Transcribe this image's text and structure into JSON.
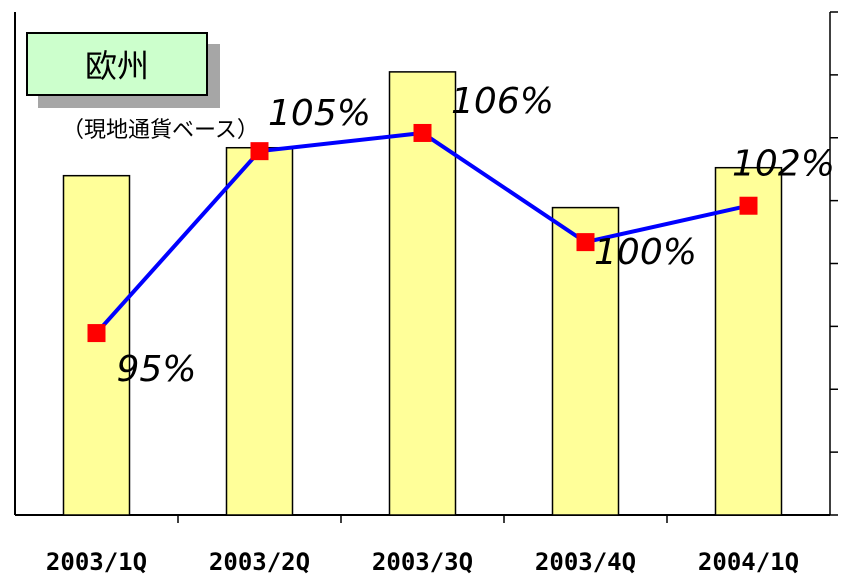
{
  "title": {
    "region": "欧州",
    "basis": "（現地通貨ベース）"
  },
  "chart_data": {
    "type": "bar+line",
    "categories": [
      "2003/1Q",
      "2003/2Q",
      "2003/3Q",
      "2003/4Q",
      "2004/1Q"
    ],
    "bar_values": [
      85,
      92,
      111,
      77,
      87
    ],
    "bar_axis": {
      "ylim": [
        0,
        126
      ],
      "ticks": 8,
      "tick_labels_visible": false
    },
    "line_series": {
      "values": [
        95,
        105,
        106,
        100,
        102
      ],
      "labels": [
        "95%",
        "105%",
        "106%",
        "100%",
        "102%"
      ],
      "ylim": [
        85,
        111
      ]
    },
    "colors": {
      "bar_fill": "#ffff99",
      "bar_stroke": "#000000",
      "line": "#0000ff",
      "marker": "#ff0000"
    },
    "grid": false,
    "legend": "none"
  }
}
